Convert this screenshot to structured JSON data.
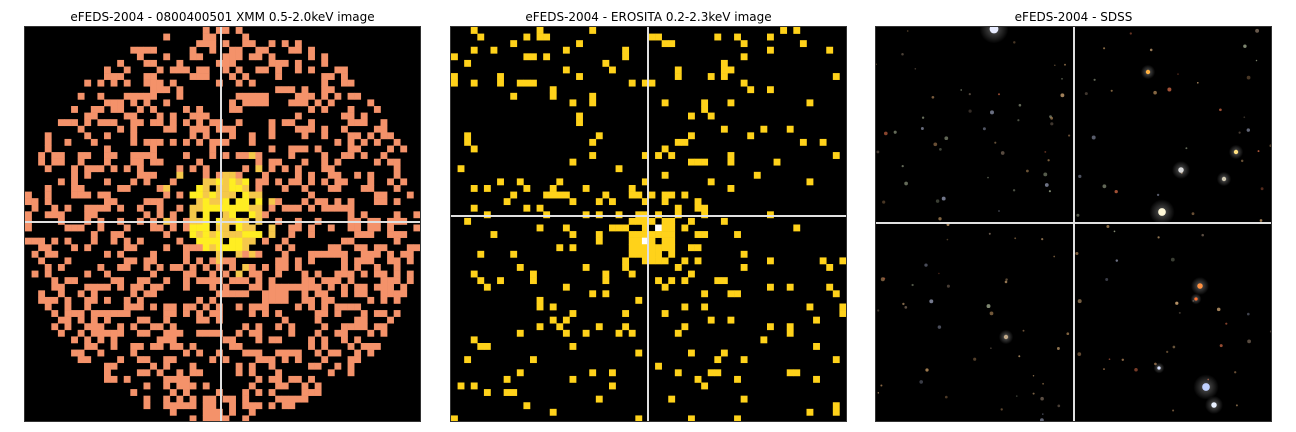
{
  "panels": [
    {
      "title": "eFEDS-2004 - 0800400501 XMM 0.5-2.0keV image",
      "kind": "xmm"
    },
    {
      "title": "eFEDS-2004 -  EROSITA 0.2-2.3keV image",
      "kind": "erosita"
    },
    {
      "title": "eFEDS-2004 - SDSS",
      "kind": "sdss"
    }
  ],
  "colors": {
    "background": "#000000",
    "crosshair": "#e0e0e0",
    "xmm_low": "#f4926a",
    "xmm_mid": "#f5c84a",
    "xmm_high": "#ffee22",
    "erosita_pixel": "#ffd21a",
    "erosita_peak": "#ffffff"
  }
}
